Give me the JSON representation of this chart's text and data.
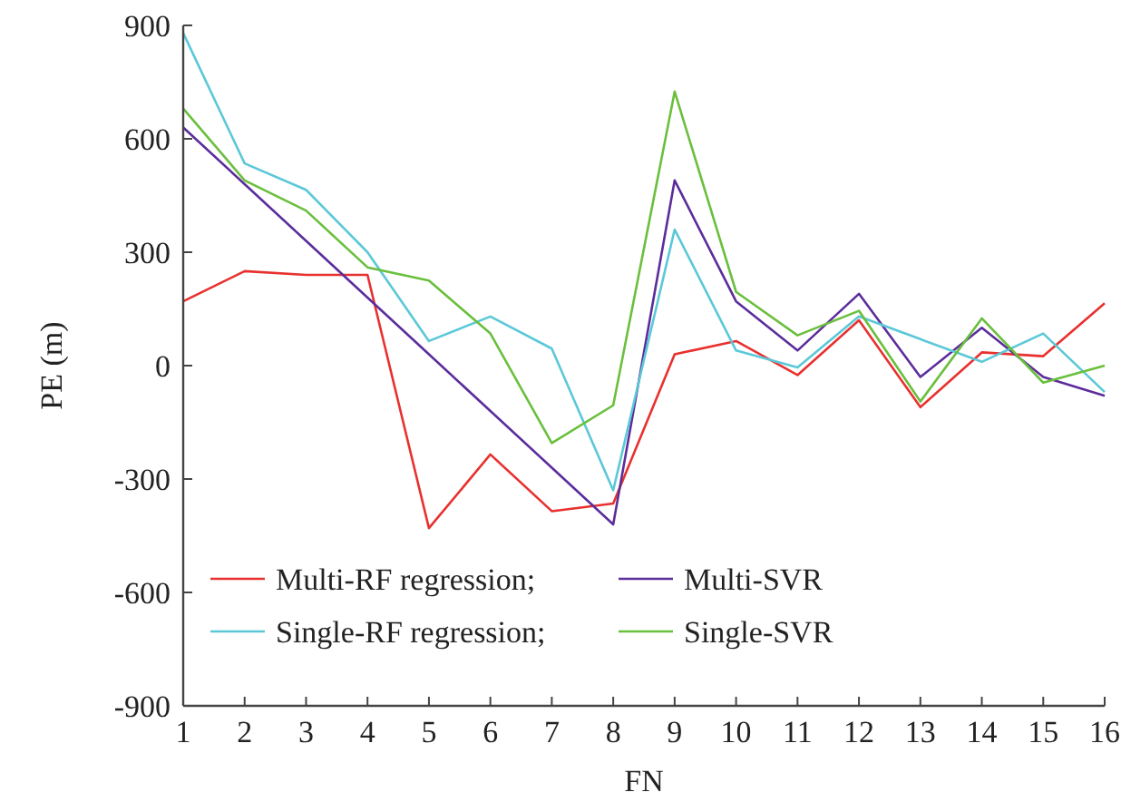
{
  "chart_data": {
    "type": "line",
    "xlabel": "FN",
    "ylabel": "PE (m)",
    "x": [
      1,
      2,
      3,
      4,
      5,
      6,
      7,
      8,
      9,
      10,
      11,
      12,
      13,
      14,
      15,
      16
    ],
    "xlim": [
      1,
      16
    ],
    "xticks": [
      1,
      2,
      3,
      4,
      5,
      6,
      7,
      8,
      9,
      10,
      11,
      12,
      13,
      14,
      15,
      16
    ],
    "ylim": [
      -900,
      900
    ],
    "yticks": [
      -900,
      -600,
      -300,
      0,
      300,
      600,
      900
    ],
    "grid": false,
    "legend": "bottom left",
    "marker": "none",
    "line_style": "solid",
    "series": [
      {
        "name": "Multi-RF regression;",
        "color": "#e8312f",
        "values": [
          170,
          250,
          240,
          240,
          -430,
          -235,
          -385,
          -365,
          30,
          65,
          -25,
          120,
          -110,
          35,
          25,
          165
        ]
      },
      {
        "name": "Multi-SVR",
        "color": "#5b2d9b",
        "values": [
          630,
          480,
          330,
          180,
          30,
          -120,
          -270,
          -420,
          490,
          170,
          40,
          190,
          -30,
          100,
          -30,
          -80
        ]
      },
      {
        "name": "Single-RF regression;",
        "color": "#5bc8d8",
        "values": [
          880,
          535,
          465,
          300,
          65,
          130,
          45,
          -330,
          360,
          40,
          -5,
          130,
          70,
          10,
          85,
          -70
        ]
      },
      {
        "name": "Single-SVR",
        "color": "#6abf3c",
        "values": [
          680,
          490,
          410,
          260,
          225,
          85,
          -205,
          -105,
          725,
          195,
          80,
          145,
          -95,
          125,
          -45,
          0
        ]
      }
    ]
  }
}
